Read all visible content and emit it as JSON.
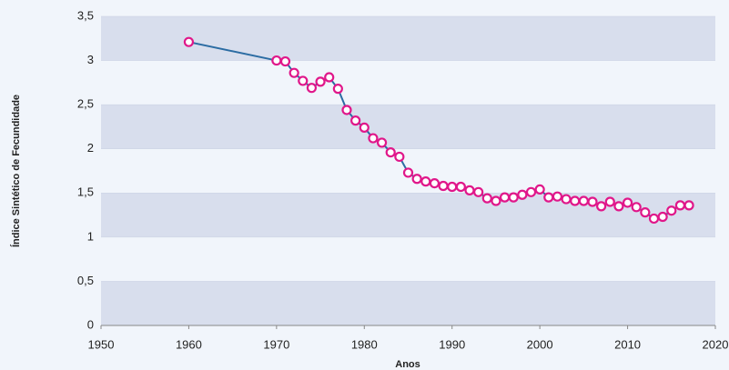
{
  "chart_data": {
    "type": "line",
    "x_label": "Anos",
    "y_label": "Índice Sintético de Fecundidade",
    "x": [
      1960,
      1970,
      1971,
      1972,
      1973,
      1974,
      1975,
      1976,
      1977,
      1978,
      1979,
      1980,
      1981,
      1982,
      1983,
      1984,
      1985,
      1986,
      1987,
      1988,
      1989,
      1990,
      1991,
      1992,
      1993,
      1994,
      1995,
      1996,
      1997,
      1998,
      1999,
      2000,
      2001,
      2002,
      2003,
      2004,
      2005,
      2006,
      2007,
      2008,
      2009,
      2010,
      2011,
      2012,
      2013,
      2014,
      2015,
      2016,
      2017
    ],
    "series": [
      {
        "color": "#2b6ca3",
        "marker_color": "#e0178a",
        "values": [
          3.21,
          3.0,
          2.99,
          2.86,
          2.77,
          2.69,
          2.76,
          2.81,
          2.68,
          2.44,
          2.32,
          2.24,
          2.12,
          2.07,
          1.96,
          1.91,
          1.73,
          1.66,
          1.63,
          1.61,
          1.58,
          1.57,
          1.57,
          1.53,
          1.51,
          1.44,
          1.41,
          1.45,
          1.45,
          1.48,
          1.51,
          1.54,
          1.45,
          1.46,
          1.43,
          1.41,
          1.41,
          1.4,
          1.35,
          1.4,
          1.35,
          1.39,
          1.34,
          1.28,
          1.21,
          1.23,
          1.3,
          1.36,
          1.36
        ]
      }
    ],
    "xlim": [
      1950,
      2020
    ],
    "xticks": [
      1950,
      1960,
      1970,
      1980,
      1990,
      2000,
      2010,
      2020
    ],
    "ylim": [
      0,
      3.5
    ],
    "yticks": [
      0,
      {
        "value": 0.5,
        "label": "0,5"
      },
      1,
      {
        "value": 1.5,
        "label": "1,5"
      },
      2,
      {
        "value": 2.5,
        "label": "2,5"
      },
      3,
      {
        "value": 3.5,
        "label": "3,5"
      }
    ],
    "band_color": "#d8deed"
  }
}
